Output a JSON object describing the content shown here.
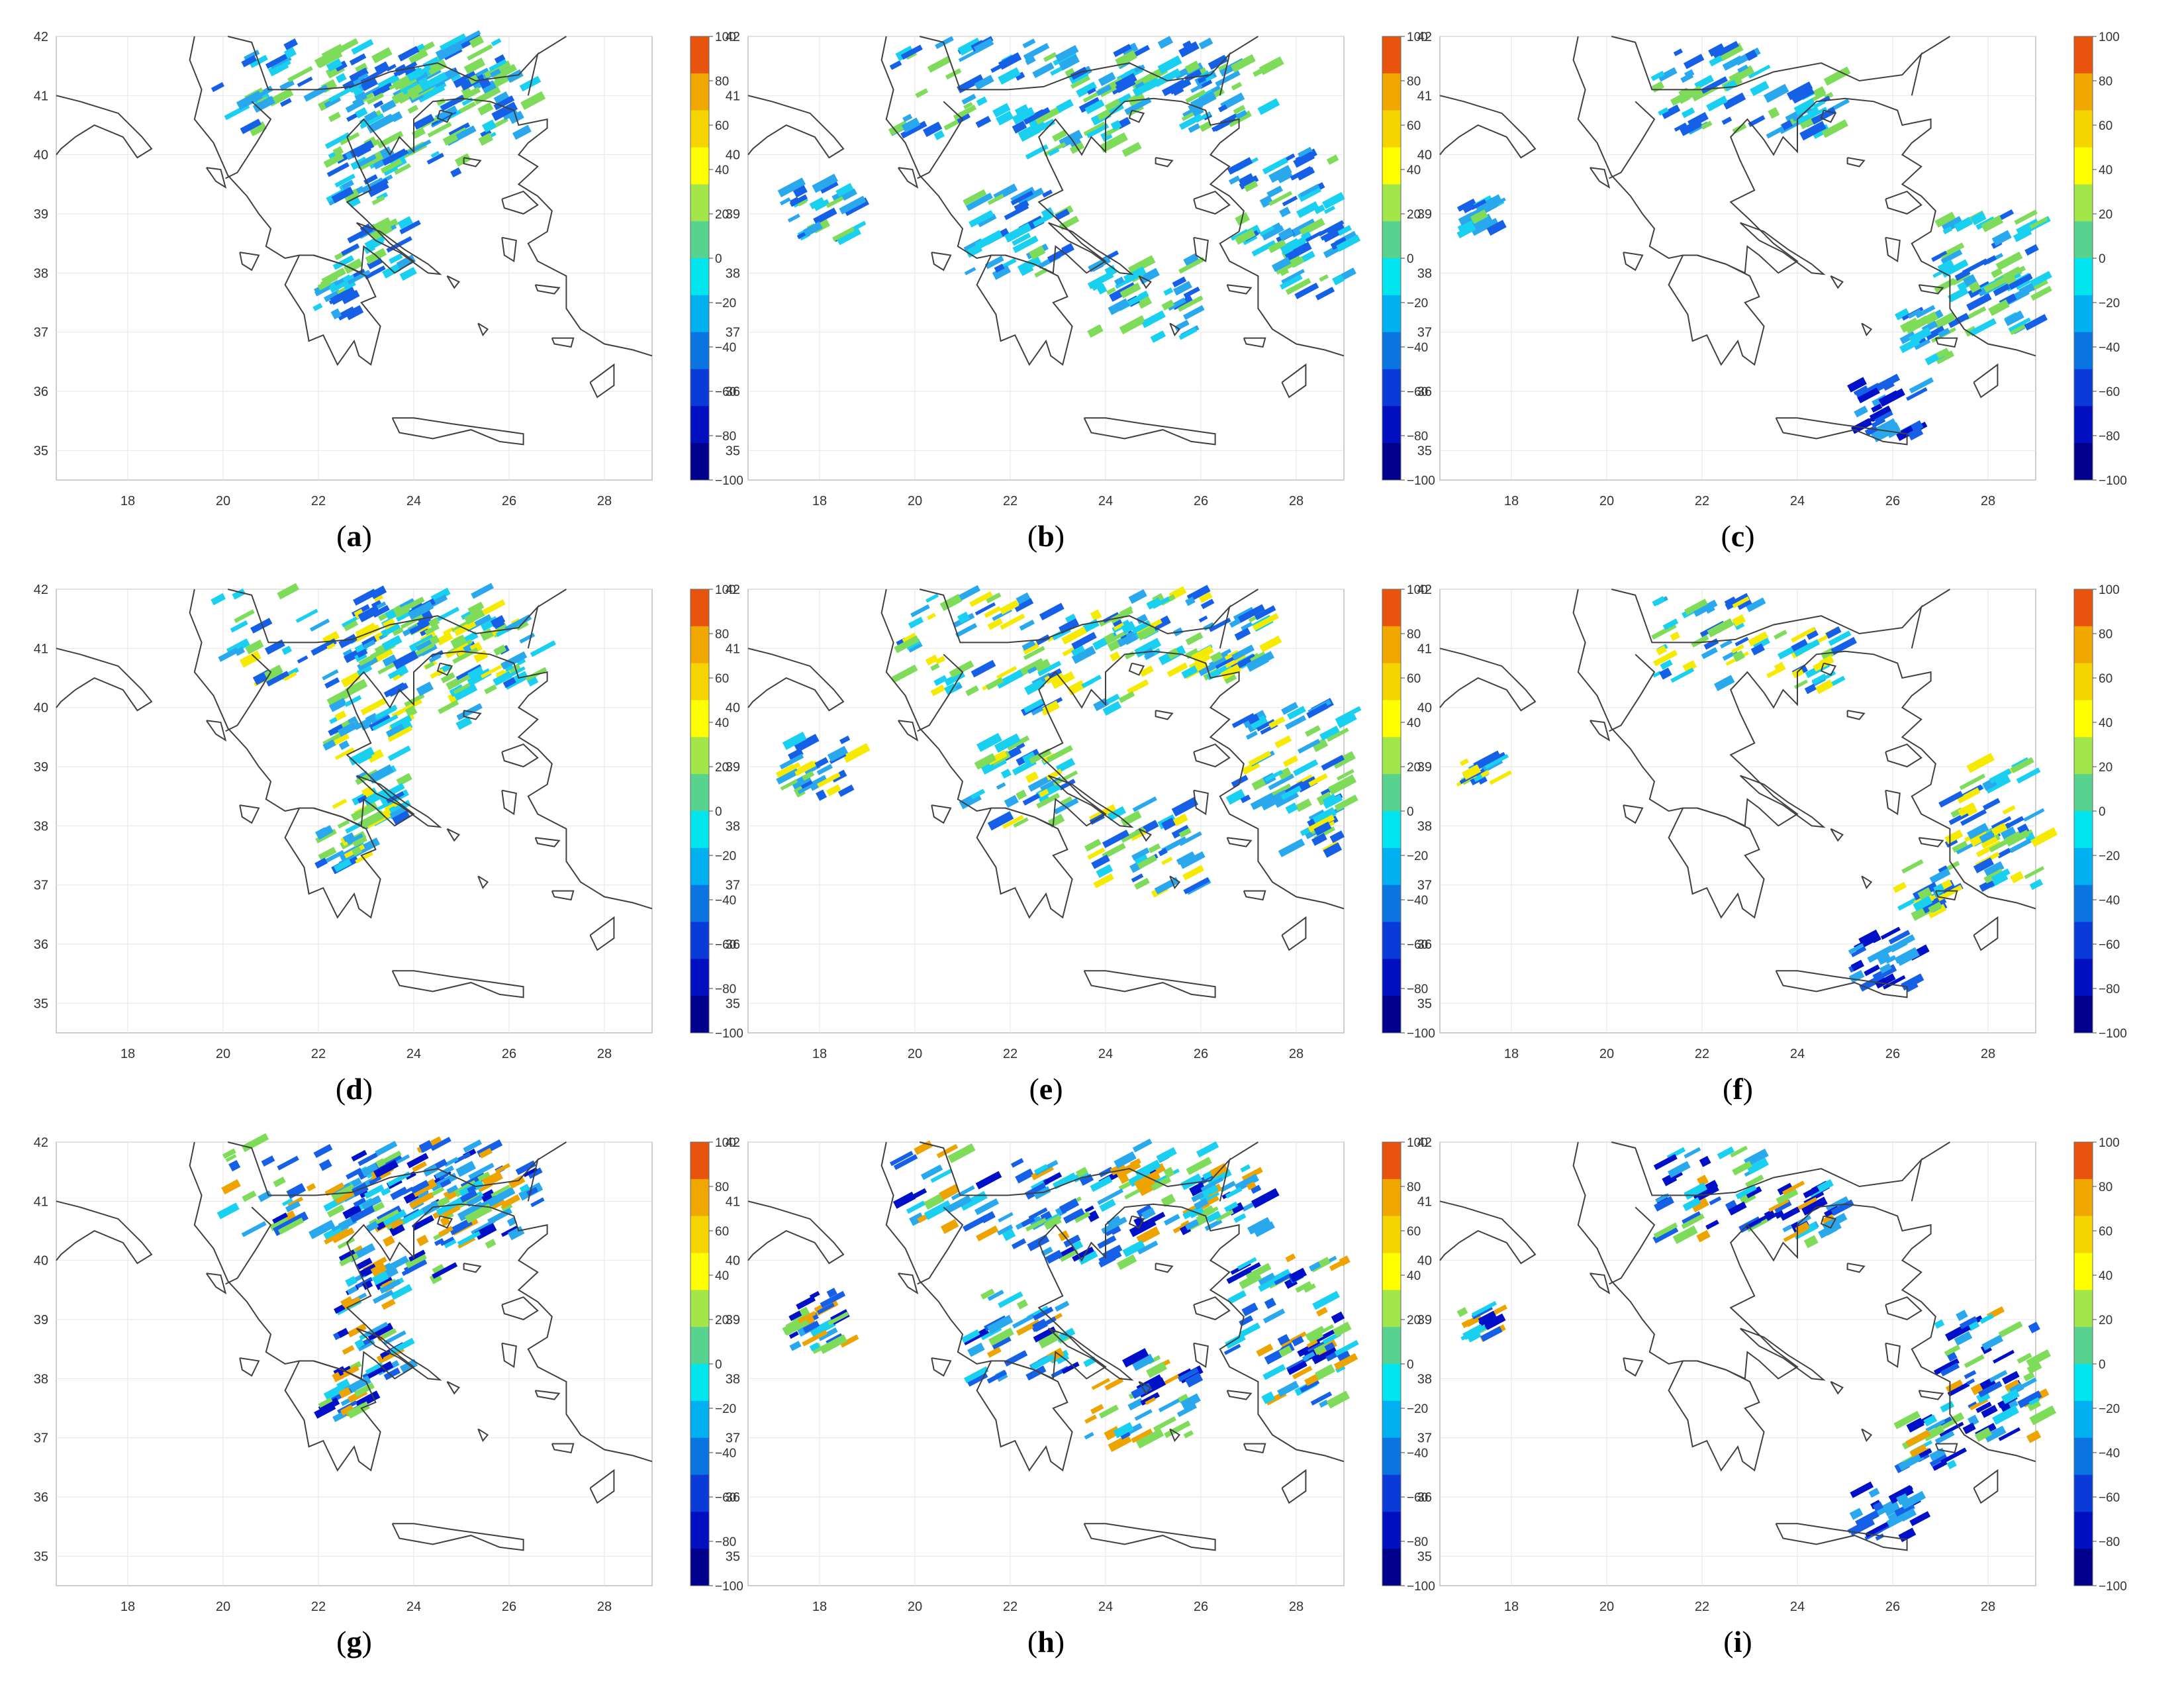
{
  "figure": {
    "panels": [
      {
        "label": "a"
      },
      {
        "label": "b"
      },
      {
        "label": "c"
      },
      {
        "label": "d"
      },
      {
        "label": "e"
      },
      {
        "label": "f"
      },
      {
        "label": "g"
      },
      {
        "label": "h"
      },
      {
        "label": "i"
      }
    ],
    "axes": {
      "xlim": [
        16.5,
        29
      ],
      "ylim": [
        34.5,
        42
      ],
      "xticks": [
        "18",
        "20",
        "22",
        "24",
        "26",
        "28"
      ],
      "yticks": [
        "35",
        "36",
        "37",
        "38",
        "39",
        "40",
        "41",
        "42"
      ],
      "grid": true
    },
    "colorbar": {
      "range": [
        -100,
        100
      ],
      "tick_labels": [
        "100",
        "80",
        "60",
        "40",
        "20",
        "0",
        "−20",
        "−40",
        "−60",
        "−80",
        "−100"
      ],
      "colors": [
        "#e8530e",
        "#f0a800",
        "#f5d400",
        "#ffff00",
        "#a3e64a",
        "#57d38f",
        "#00e5ee",
        "#00b0f0",
        "#0a74e0",
        "#0a3ad8",
        "#0010c0",
        "#00008c"
      ]
    },
    "colors": {
      "coastline": "#404040",
      "grid": "#e6e6e6",
      "green": "#7fdc5a",
      "yellow": "#f5ea00",
      "orange": "#eda400",
      "cyan": "#19d0f0",
      "light_blue": "#2aa8ee",
      "blue": "#1560e6",
      "dark_blue": "#0010c8"
    }
  }
}
